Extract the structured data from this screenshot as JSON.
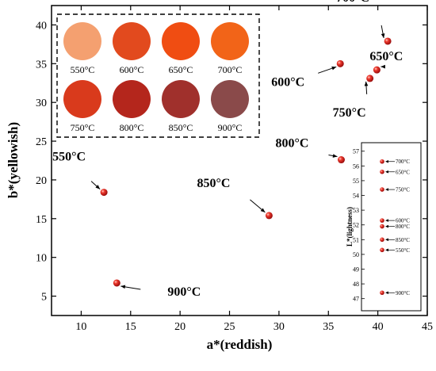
{
  "chart_data": {
    "type": "scatter",
    "xlabel": "a*(reddish)",
    "ylabel": "b*(yellowish)",
    "xlim": [
      7,
      45
    ],
    "ylim": [
      2.5,
      42.5
    ],
    "xticks": [
      10,
      15,
      20,
      25,
      30,
      35,
      40,
      45
    ],
    "yticks": [
      5,
      10,
      15,
      20,
      25,
      30,
      35,
      40
    ],
    "grid": false,
    "marker_color": "#d42020",
    "points": [
      {
        "label": "550°C",
        "x": 12.3,
        "y": 18.4
      },
      {
        "label": "600°C",
        "x": 36.2,
        "y": 35.0
      },
      {
        "label": "650°C",
        "x": 39.9,
        "y": 34.2
      },
      {
        "label": "700°C",
        "x": 41.0,
        "y": 37.9
      },
      {
        "label": "750°C",
        "x": 39.2,
        "y": 33.1
      },
      {
        "label": "800°C",
        "x": 36.3,
        "y": 22.6
      },
      {
        "label": "850°C",
        "x": 29.0,
        "y": 15.4
      },
      {
        "label": "900°C",
        "x": 13.6,
        "y": 6.7
      }
    ],
    "swatches": [
      {
        "label": "550°C",
        "color": "#f4a070"
      },
      {
        "label": "600°C",
        "color": "#e24a1e"
      },
      {
        "label": "650°C",
        "color": "#f04d12"
      },
      {
        "label": "700°C",
        "color": "#f26418"
      },
      {
        "label": "750°C",
        "color": "#d93a1c"
      },
      {
        "label": "800°C",
        "color": "#b4261c"
      },
      {
        "label": "850°C",
        "color": "#a0302c"
      },
      {
        "label": "900°C",
        "color": "#8a4a4a"
      }
    ],
    "inset": {
      "ylabel": "L*(lightness)",
      "ylim": [
        46.5,
        57.2
      ],
      "yticks": [
        47,
        48,
        49,
        50,
        51,
        52,
        53,
        54,
        55,
        56,
        57
      ],
      "points": [
        {
          "label": "700°C",
          "value": 56.3
        },
        {
          "label": "650°C",
          "value": 55.6
        },
        {
          "label": "750°C",
          "value": 54.4
        },
        {
          "label": "600°C",
          "value": 52.3
        },
        {
          "label": "800°C",
          "value": 51.9
        },
        {
          "label": "850°C",
          "value": 51.0
        },
        {
          "label": "550°C",
          "value": 50.3
        },
        {
          "label": "900°C",
          "value": 47.4
        }
      ]
    }
  }
}
